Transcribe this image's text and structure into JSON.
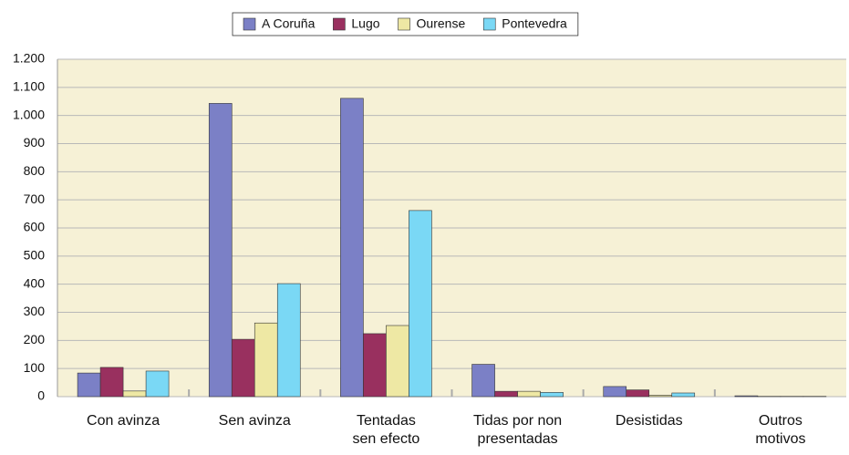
{
  "chart_data": {
    "type": "bar",
    "categories": [
      "Con avinza",
      "Sen avinza",
      "Tentadas\nsen efecto",
      "Tidas por non\npresentadas",
      "Desistidas",
      "Outros\nmotivos"
    ],
    "series": [
      {
        "name": "A Coruña",
        "color": "#7b80c6",
        "values": [
          84,
          1043,
          1061,
          115,
          36,
          3
        ]
      },
      {
        "name": "Lugo",
        "color": "#99305f",
        "values": [
          104,
          204,
          224,
          19,
          24,
          1
        ]
      },
      {
        "name": "Ourense",
        "color": "#eee8a4",
        "values": [
          20,
          262,
          253,
          19,
          5,
          1
        ]
      },
      {
        "name": "Pontevedra",
        "color": "#7ad8f5",
        "values": [
          91,
          402,
          662,
          15,
          13,
          1
        ]
      }
    ],
    "ylim": [
      0,
      1200
    ],
    "yticks": [
      0,
      100,
      200,
      300,
      400,
      500,
      600,
      700,
      800,
      900,
      {
        "value": 1000,
        "label": "1.000"
      },
      {
        "value": 1100,
        "label": "1.100"
      },
      {
        "value": 1200,
        "label": "1.200"
      }
    ],
    "grid": true,
    "legend": "top"
  }
}
